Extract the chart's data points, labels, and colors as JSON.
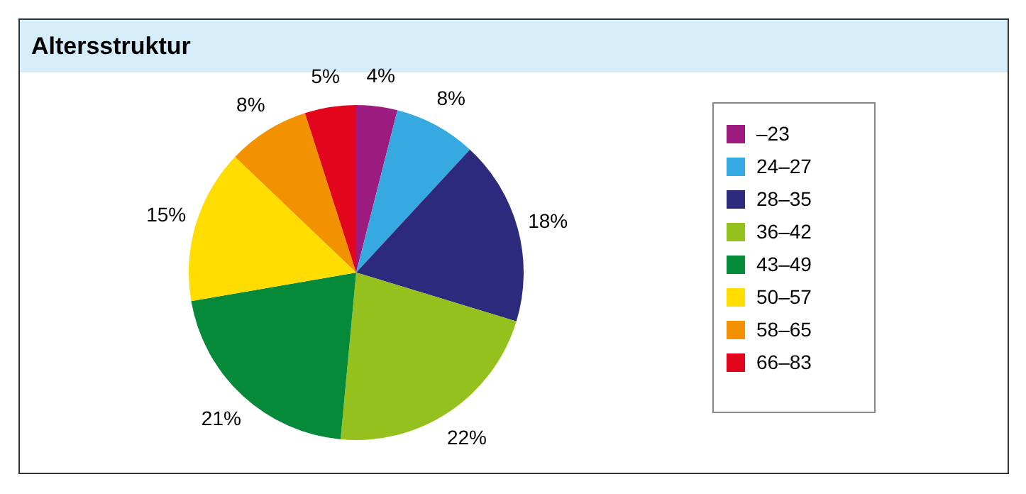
{
  "chart_data": {
    "type": "pie",
    "title": "Altersstruktur",
    "categories": [
      "–23",
      "24–27",
      "28–35",
      "36–42",
      "43–49",
      "50–57",
      "58–65",
      "66–83"
    ],
    "values": [
      4,
      8,
      18,
      22,
      21,
      15,
      8,
      5
    ],
    "colors": [
      "#9b1b7e",
      "#36a9e1",
      "#2d2a7e",
      "#95c11f",
      "#058a3a",
      "#ffdd00",
      "#f39200",
      "#e3051b"
    ],
    "value_labels": [
      "4%",
      "8%",
      "18%",
      "22%",
      "21%",
      "15%",
      "8%",
      "5%"
    ],
    "legend": "right"
  }
}
